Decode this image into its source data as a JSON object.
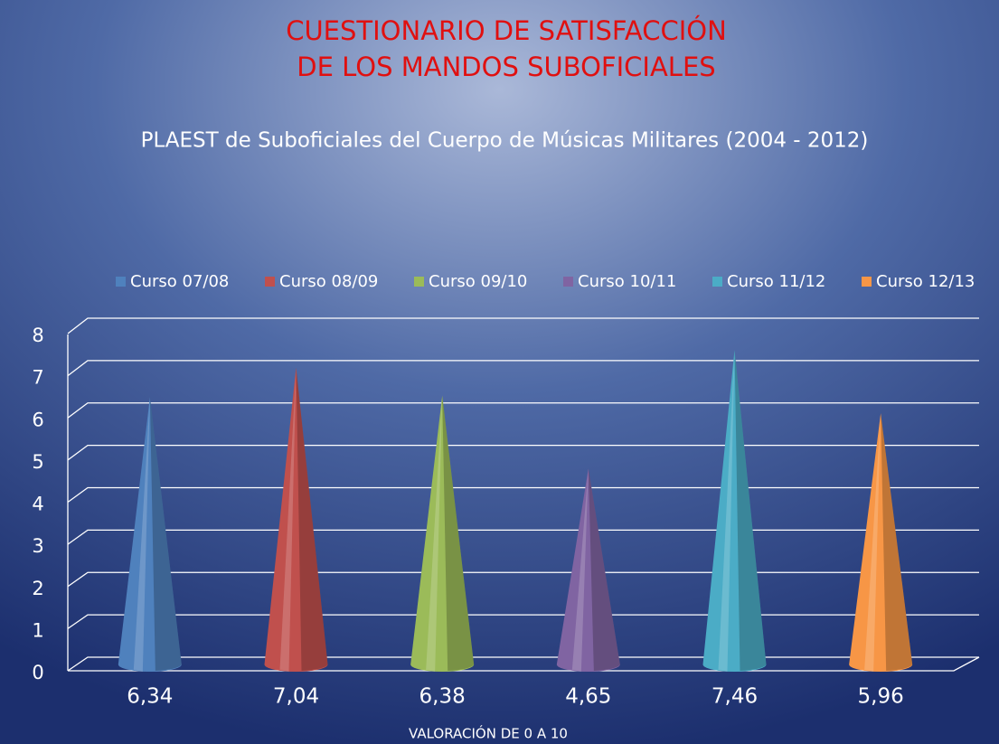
{
  "chart_data": {
    "type": "cone",
    "title": [
      "CUESTIONARIO DE SATISFACCIÓN",
      "DE LOS MANDOS SUBOFICIALES"
    ],
    "subtitle": "PLAEST de Suboficiales del Cuerpo de Músicas Militares (2004 - 2012)",
    "x_label": "VALORACIÓN DE 0 A 10",
    "series": [
      {
        "name": "Curso 07/08",
        "color": "#4f81bd",
        "values": [
          6.34
        ],
        "value_labels": [
          "6,34"
        ]
      },
      {
        "name": "Curso 08/09",
        "color": "#c0504d",
        "values": [
          7.04
        ],
        "value_labels": [
          "7,04"
        ]
      },
      {
        "name": "Curso 09/10",
        "color": "#9bbb59",
        "values": [
          6.38
        ],
        "value_labels": [
          "6,38"
        ]
      },
      {
        "name": "Curso 10/11",
        "color": "#8064a2",
        "values": [
          4.65
        ],
        "value_labels": [
          "4,65"
        ]
      },
      {
        "name": "Curso 11/12",
        "color": "#4bacc6",
        "values": [
          7.46
        ],
        "value_labels": [
          "7,46"
        ]
      },
      {
        "name": "Curso 12/13",
        "color": "#f79646",
        "values": [
          5.96
        ],
        "value_labels": [
          "5,96"
        ]
      }
    ],
    "ylim": [
      0,
      8
    ],
    "yticks": [
      0,
      1,
      2,
      3,
      4,
      5,
      6,
      7,
      8
    ],
    "grid": true,
    "legend": "top"
  }
}
